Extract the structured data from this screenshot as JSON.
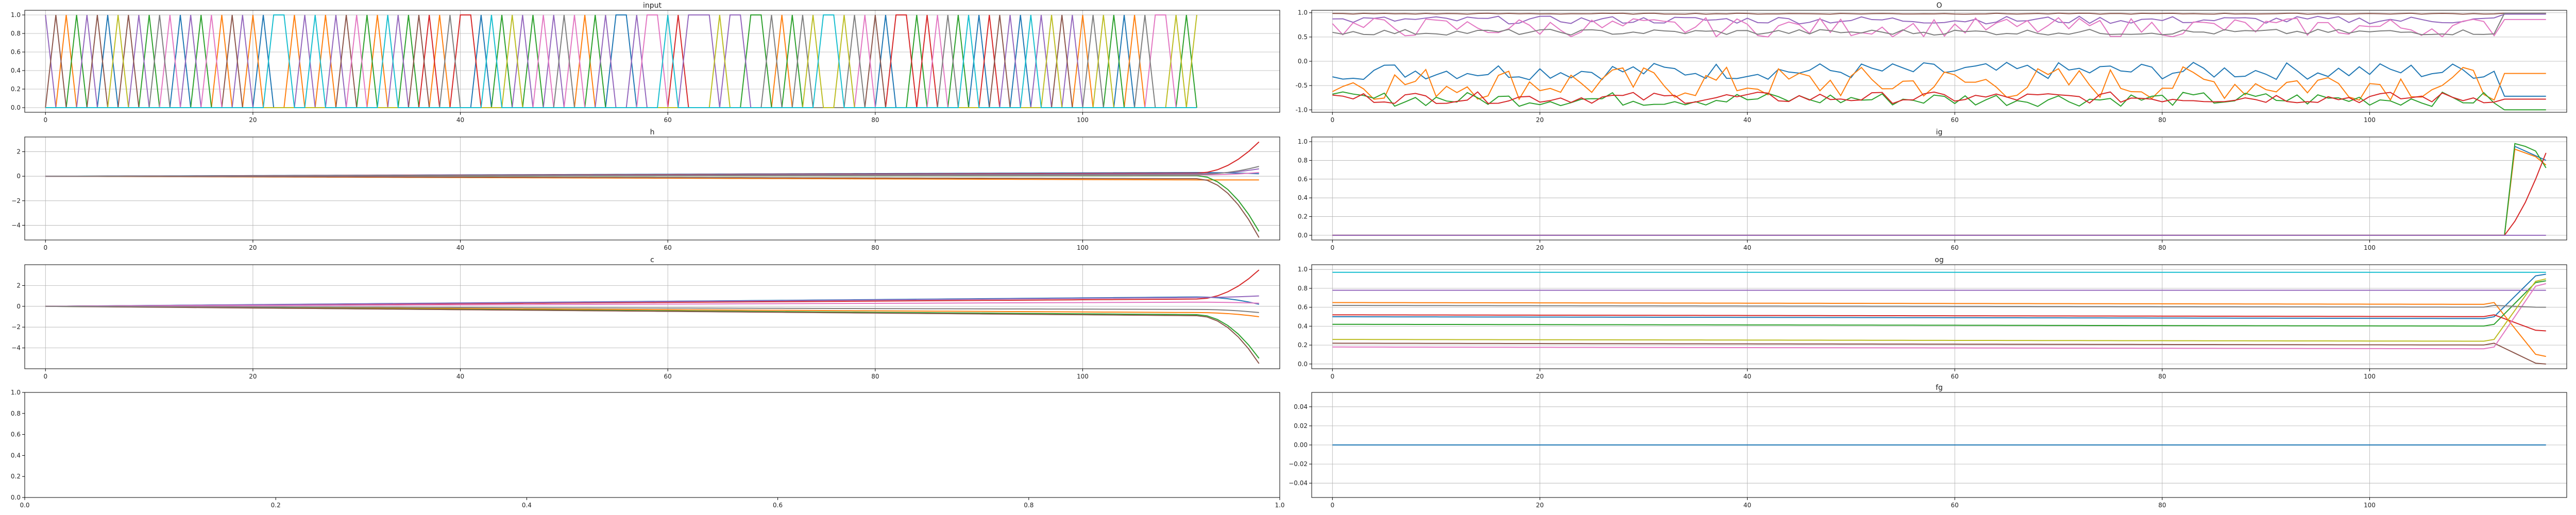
{
  "colors": [
    "#1f77b4",
    "#ff7f0e",
    "#2ca02c",
    "#d62728",
    "#9467bd",
    "#8c564b",
    "#e377c2",
    "#7f7f7f",
    "#bcbd22",
    "#17becf"
  ],
  "chart_data": [
    {
      "id": "input",
      "type": "line",
      "title": "input",
      "xlim": [
        -2,
        119
      ],
      "ylim": [
        -0.05,
        1.05
      ],
      "xticks": [
        0,
        20,
        40,
        60,
        80,
        100
      ],
      "xticklabels": [
        "0",
        "20",
        "40",
        "60",
        "80",
        "100"
      ],
      "yticks": [
        0.0,
        0.2,
        0.4,
        0.6,
        0.8,
        1.0
      ],
      "yticklabels": [
        "0.0",
        "0.2",
        "0.4",
        "0.6",
        "0.8",
        "1.0"
      ],
      "grid": true,
      "n_points": 112,
      "series": [
        {
          "values": [],
          "description": "one-hot switching among 10 series, each value 0 or 1"
        }
      ]
    },
    {
      "id": "o",
      "type": "line",
      "title": "O",
      "xlim": [
        -2,
        119
      ],
      "ylim": [
        -1.05,
        1.05
      ],
      "xticks": [
        0,
        20,
        40,
        60,
        80,
        100
      ],
      "xticklabels": [
        "0",
        "20",
        "40",
        "60",
        "80",
        "100"
      ],
      "yticks": [
        -1.0,
        -0.5,
        0.0,
        0.5,
        1.0
      ],
      "yticklabels": [
        "-1.0",
        "-0.5",
        "0.0",
        "0.5",
        "1.0"
      ],
      "grid": true,
      "n_points": 118,
      "series": [
        {
          "base": -0.2,
          "amp": 0.18,
          "end": -0.72
        },
        {
          "base": -0.45,
          "amp": 0.35,
          "end": -0.25
        },
        {
          "base": -0.78,
          "amp": 0.15,
          "end": -1.0
        },
        {
          "base": -0.75,
          "amp": 0.12,
          "end": -0.78
        },
        {
          "base": 0.85,
          "amp": 0.08,
          "end": 0.97
        },
        {
          "base": 0.98,
          "amp": 0.01,
          "end": 0.99
        },
        {
          "base": 0.7,
          "amp": 0.2,
          "end": 0.86
        },
        {
          "base": 0.6,
          "amp": 0.06,
          "end": 0.99
        }
      ]
    },
    {
      "id": "h",
      "type": "line",
      "title": "h",
      "xlim": [
        -2,
        119
      ],
      "ylim": [
        -5.2,
        3.2
      ],
      "xticks": [
        0,
        20,
        40,
        60,
        80,
        100
      ],
      "xticklabels": [
        "0",
        "20",
        "40",
        "60",
        "80",
        "100"
      ],
      "yticks": [
        -4,
        -2,
        0,
        2
      ],
      "yticklabels": [
        "−4",
        "−2",
        "0",
        "2"
      ],
      "grid": true,
      "n_points": 118,
      "series": [
        {
          "start": 0,
          "drift": 0.3,
          "end": 0.2
        },
        {
          "start": 0,
          "drift": -0.3,
          "end": -0.3
        },
        {
          "start": 0,
          "drift": 0.05,
          "end": -4.5
        },
        {
          "start": 0,
          "drift": 0.25,
          "end": 2.8
        },
        {
          "start": 0,
          "drift": 0.2,
          "end": 0.6
        },
        {
          "start": 0,
          "drift": -0.2,
          "end": -5.0
        },
        {
          "start": 0,
          "drift": 0.1,
          "end": 0.3
        },
        {
          "start": 0,
          "drift": 0.15,
          "end": 0.8
        }
      ]
    },
    {
      "id": "ig",
      "type": "line",
      "title": "ig",
      "xlim": [
        -2,
        119
      ],
      "ylim": [
        -0.05,
        1.05
      ],
      "xticks": [
        0,
        20,
        40,
        60,
        80,
        100
      ],
      "xticklabels": [
        "0",
        "20",
        "40",
        "60",
        "80",
        "100"
      ],
      "yticks": [
        0.0,
        0.2,
        0.4,
        0.6,
        0.8,
        1.0
      ],
      "yticklabels": [
        "0.0",
        "0.2",
        "0.4",
        "0.6",
        "0.8",
        "1.0"
      ],
      "grid": true,
      "n_points": 118,
      "series": [
        {
          "base": 0.0,
          "tail": [
            0.0,
            0.95,
            0.9,
            0.85,
            0.8
          ]
        },
        {
          "base": 0.0,
          "tail": [
            0.0,
            0.92,
            0.88,
            0.84,
            0.75
          ]
        },
        {
          "base": 0.0,
          "tail": [
            0.0,
            0.98,
            0.95,
            0.9,
            0.72
          ]
        },
        {
          "base": 0.0,
          "tail": [
            0.0,
            0.15,
            0.35,
            0.6,
            0.88
          ]
        },
        {
          "base": 0.0,
          "tail": [
            0.0,
            0.0,
            0.0,
            0.0,
            0.0
          ]
        }
      ]
    },
    {
      "id": "c",
      "type": "line",
      "title": "c",
      "xlim": [
        -2,
        119
      ],
      "ylim": [
        -6.0,
        4.0
      ],
      "xticks": [
        0,
        20,
        40,
        60,
        80,
        100
      ],
      "xticklabels": [
        "0",
        "20",
        "40",
        "60",
        "80",
        "100"
      ],
      "yticks": [
        -4,
        -2,
        0,
        2
      ],
      "yticklabels": [
        "−4",
        "−2",
        "0",
        "2"
      ],
      "grid": true,
      "n_points": 118,
      "series": [
        {
          "start": 0,
          "drift": 0.9,
          "end": 0.2
        },
        {
          "start": 0,
          "drift": -0.6,
          "end": -1.0
        },
        {
          "start": 0,
          "drift": -0.8,
          "end": -5.0
        },
        {
          "start": 0,
          "drift": 0.7,
          "end": 3.5
        },
        {
          "start": 0,
          "drift": 0.85,
          "end": 1.0
        },
        {
          "start": 0,
          "drift": -0.9,
          "end": -5.5
        },
        {
          "start": 0,
          "drift": 0.4,
          "end": 0.3
        },
        {
          "start": 0,
          "drift": -0.3,
          "end": -0.6
        }
      ]
    },
    {
      "id": "og",
      "type": "line",
      "title": "og",
      "xlim": [
        -2,
        119
      ],
      "ylim": [
        -0.05,
        1.05
      ],
      "xticks": [
        0,
        20,
        40,
        60,
        80,
        100
      ],
      "xticklabels": [
        "0",
        "20",
        "40",
        "60",
        "80",
        "100"
      ],
      "yticks": [
        0.0,
        0.2,
        0.4,
        0.6,
        0.8,
        1.0
      ],
      "yticklabels": [
        "0.0",
        "0.2",
        "0.4",
        "0.6",
        "0.8",
        "1.0"
      ],
      "grid": true,
      "n_points": 118,
      "series": [
        {
          "base": 0.5,
          "drift": -0.02,
          "end": 0.95
        },
        {
          "base": 0.65,
          "drift": -0.02,
          "end": 0.08
        },
        {
          "base": 0.42,
          "drift": -0.02,
          "end": 0.88
        },
        {
          "base": 0.52,
          "drift": -0.02,
          "end": 0.35
        },
        {
          "base": 0.78,
          "drift": 0.0,
          "end": 0.78
        },
        {
          "base": 0.22,
          "drift": -0.02,
          "end": 0.0
        },
        {
          "base": 0.18,
          "drift": -0.02,
          "end": 0.85
        },
        {
          "base": 0.62,
          "drift": -0.02,
          "end": 0.6
        },
        {
          "base": 0.26,
          "drift": -0.02,
          "end": 0.9
        },
        {
          "base": 0.97,
          "drift": 0.0,
          "end": 0.97
        }
      ]
    },
    {
      "id": "empty",
      "type": "line",
      "title": "",
      "xlim": [
        0.0,
        1.0
      ],
      "ylim": [
        0.0,
        1.0
      ],
      "xticks": [
        0.0,
        0.2,
        0.4,
        0.6,
        0.8,
        1.0
      ],
      "xticklabels": [
        "0.0",
        "0.2",
        "0.4",
        "0.6",
        "0.8",
        "1.0"
      ],
      "yticks": [
        0.0,
        0.2,
        0.4,
        0.6,
        0.8,
        1.0
      ],
      "yticklabels": [
        "0.0",
        "0.2",
        "0.4",
        "0.6",
        "0.8",
        "1.0"
      ],
      "grid": false,
      "series": []
    },
    {
      "id": "fg",
      "type": "line",
      "title": "fg",
      "xlim": [
        -2,
        119
      ],
      "ylim": [
        -0.055,
        0.055
      ],
      "xticks": [
        0,
        20,
        40,
        60,
        80,
        100
      ],
      "xticklabels": [
        "0",
        "20",
        "40",
        "60",
        "80",
        "100"
      ],
      "yticks": [
        -0.04,
        -0.02,
        0.0,
        0.02,
        0.04
      ],
      "yticklabels": [
        "−0.04",
        "−0.02",
        "0.00",
        "0.02",
        "0.04"
      ],
      "grid": true,
      "n_points": 118,
      "series": [
        {
          "constant": 0.0
        }
      ]
    }
  ]
}
